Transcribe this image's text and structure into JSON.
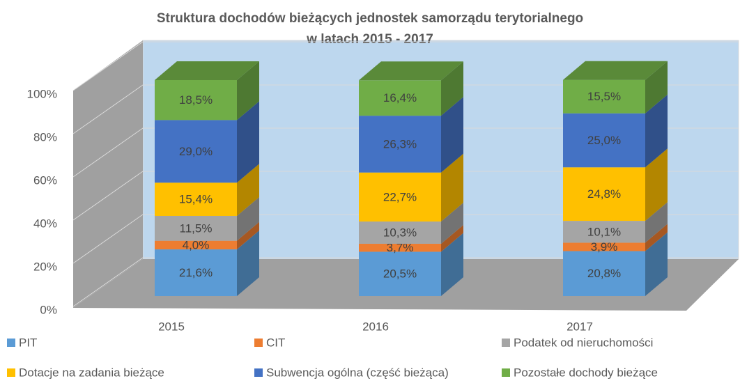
{
  "chart_data": {
    "type": "bar3d_stacked",
    "title": [
      "Struktura dochodów bieżących jednostek samorządu terytorialnego",
      "w latach 2015 - 2017"
    ],
    "categories": [
      "2015",
      "2016",
      "2017"
    ],
    "ylim": [
      0,
      100
    ],
    "yticks": [
      {
        "value": 0,
        "label": "0%"
      },
      {
        "value": 20,
        "label": "20%"
      },
      {
        "value": 40,
        "label": "40%"
      },
      {
        "value": 60,
        "label": "60%"
      },
      {
        "value": 80,
        "label": "80%"
      },
      {
        "value": 100,
        "label": "100%"
      }
    ],
    "grid": true,
    "series": [
      {
        "name": "PIT",
        "color": "#5b9bd5",
        "values": [
          21.6,
          20.5,
          20.8
        ],
        "value_labels": [
          "21,6%",
          "20,5%",
          "20,8%"
        ]
      },
      {
        "name": "CIT",
        "color": "#ed7d31",
        "values": [
          4.0,
          3.7,
          3.9
        ],
        "value_labels": [
          "4,0%",
          "3,7%",
          "3,9%"
        ]
      },
      {
        "name": "Podatek od nieruchomości",
        "color": "#a5a5a5",
        "values": [
          11.5,
          10.3,
          10.1
        ],
        "value_labels": [
          "11,5%",
          "10,3%",
          "10,1%"
        ]
      },
      {
        "name": "Dotacje na zadania bieżące",
        "color": "#ffc000",
        "values": [
          15.4,
          22.7,
          24.8
        ],
        "value_labels": [
          "15,4%",
          "22,7%",
          "24,8%"
        ]
      },
      {
        "name": "Subwencja ogólna (część bieżąca)",
        "color": "#4472c4",
        "values": [
          29.0,
          26.3,
          25.0
        ],
        "value_labels": [
          "29,0%",
          "26,3%",
          "25,0%"
        ]
      },
      {
        "name": "Pozostałe dochody bieżące",
        "color": "#70ad47",
        "values": [
          18.5,
          16.4,
          15.5
        ],
        "value_labels": [
          "18,5%",
          "16,4%",
          "15,5%"
        ]
      }
    ]
  }
}
